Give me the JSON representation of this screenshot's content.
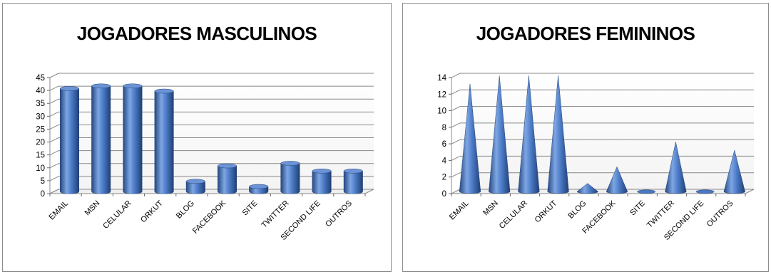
{
  "chart_data": [
    {
      "type": "bar",
      "shape": "cylinder",
      "title": "JOGADORES MASCULINOS",
      "categories": [
        "EMAIL",
        "MSN",
        "CELULAR",
        "ORKUT",
        "BLOG",
        "FACEBOOK",
        "SITE",
        "TWITTER",
        "SECOND LIFE",
        "OUTROS"
      ],
      "values": [
        40,
        41,
        41,
        39,
        4,
        10,
        2,
        11,
        8,
        8
      ],
      "yticks": [
        "0",
        "5",
        "10",
        "15",
        "20",
        "25",
        "30",
        "35",
        "40",
        "45"
      ],
      "ylim": [
        0,
        45
      ],
      "grid": true,
      "legend": "none",
      "color": "#3f6fbf"
    },
    {
      "type": "bar",
      "shape": "cone",
      "title": "JOGADORES FEMININOS",
      "categories": [
        "EMAIL",
        "MSN",
        "CELULAR",
        "ORKUT",
        "BLOG",
        "FACEBOOK",
        "SITE",
        "TWITTER",
        "SECOND LIFE",
        "OUTROS"
      ],
      "values": [
        13,
        14,
        14,
        14,
        1,
        3,
        0,
        6,
        0,
        5
      ],
      "yticks": [
        "0",
        "2",
        "4",
        "6",
        "8",
        "10",
        "12",
        "14"
      ],
      "ylim": [
        0,
        14
      ],
      "grid": true,
      "legend": "none",
      "color": "#3f6fbf"
    }
  ]
}
